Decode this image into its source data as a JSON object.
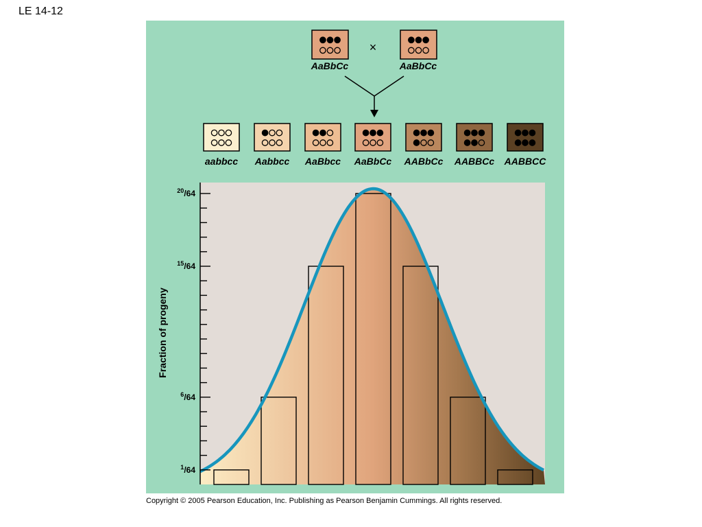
{
  "slide": {
    "label": "LE 14-12"
  },
  "copyright": "Copyright ©  2005 Pearson Education, Inc. Publishing as Pearson Benjamin Cummings. All rights reserved.",
  "cross": {
    "symbol": "×",
    "parents": [
      {
        "genotype": "AaBbCc",
        "dark_alleles": 3
      },
      {
        "genotype": "AaBbCc",
        "dark_alleles": 3
      }
    ]
  },
  "colors": {
    "panel": "#9dd9bd",
    "plot_bg": "#e3dcd7",
    "curve": "#1796bd",
    "box_fills": [
      "#fbf0cf",
      "#f4d3ad",
      "#eebd93",
      "#e1a37e",
      "#ba875d",
      "#8f6640",
      "#5a4023"
    ]
  },
  "chart_data": {
    "type": "bar",
    "categories": [
      "aabbcc",
      "Aabbcc",
      "AaBbcc",
      "AaBbCc",
      "AABbCc",
      "AABBCc",
      "AABBCC"
    ],
    "values": [
      1,
      6,
      15,
      20,
      15,
      6,
      1
    ],
    "value_unit": "/64",
    "ylabel": "Fraction of progeny",
    "ylim": [
      0,
      20
    ],
    "y_ticks": [
      {
        "num": "20",
        "den": "64",
        "value": 20
      },
      {
        "num": "15",
        "den": "64",
        "value": 15
      },
      {
        "num": "6",
        "den": "64",
        "value": 6
      },
      {
        "num": "1",
        "den": "64",
        "value": 1
      }
    ],
    "minor_tick_step": 1,
    "curve": "normal distribution overlay"
  }
}
